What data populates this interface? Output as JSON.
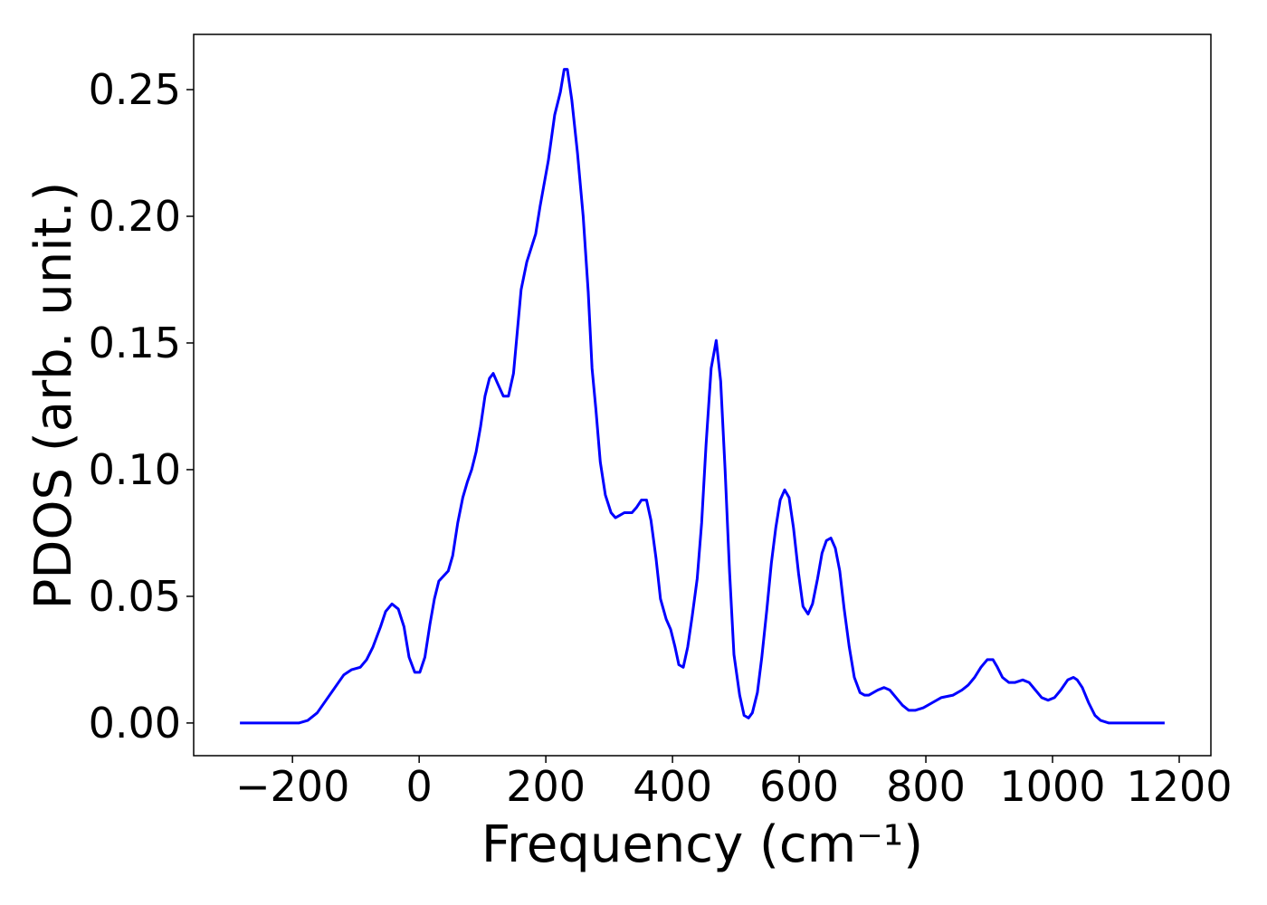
{
  "chart_data": {
    "type": "line",
    "xlabel": "Frequency (cm⁻¹)",
    "ylabel": "PDOS (arb. unit.)",
    "x": [
      -283,
      -190,
      -176,
      -161,
      -147,
      -133,
      -119,
      -107,
      -93,
      -83,
      -73,
      -61,
      -53,
      -43,
      -33,
      -24,
      -16,
      -7,
      1,
      9,
      17,
      24,
      31,
      46,
      53,
      61,
      69,
      76,
      83,
      90,
      97,
      104,
      111,
      117,
      124,
      133,
      141,
      149,
      161,
      170,
      184,
      191,
      204,
      214,
      223,
      229,
      234,
      241,
      250,
      259,
      267,
      273,
      279,
      286,
      294,
      303,
      310,
      317,
      324,
      336,
      343,
      351,
      359,
      366,
      374,
      381,
      390,
      397,
      404,
      410,
      417,
      424,
      431,
      439,
      446,
      453,
      461,
      469,
      476,
      483,
      490,
      497,
      506,
      513,
      520,
      526,
      534,
      541,
      549,
      556,
      563,
      570,
      577,
      584,
      591,
      599,
      606,
      614,
      621,
      629,
      636,
      643,
      650,
      657,
      664,
      671,
      679,
      687,
      696,
      703,
      710,
      724,
      734,
      743,
      753,
      763,
      773,
      783,
      796,
      810,
      824,
      843,
      857,
      867,
      877,
      887,
      897,
      906,
      913,
      921,
      931,
      941,
      953,
      963,
      973,
      983,
      993,
      1003,
      1013,
      1024,
      1033,
      1039,
      1047,
      1057,
      1067,
      1076,
      1089,
      1177
    ],
    "series": [
      {
        "color": "#0000ff",
        "values": [
          0,
          0,
          0.001,
          0.004,
          0.009,
          0.014,
          0.019,
          0.021,
          0.022,
          0.025,
          0.03,
          0.038,
          0.044,
          0.047,
          0.045,
          0.038,
          0.026,
          0.02,
          0.02,
          0.026,
          0.039,
          0.049,
          0.056,
          0.06,
          0.066,
          0.079,
          0.089,
          0.095,
          0.1,
          0.107,
          0.117,
          0.129,
          0.136,
          0.138,
          0.134,
          0.129,
          0.129,
          0.138,
          0.171,
          0.182,
          0.193,
          0.204,
          0.222,
          0.24,
          0.249,
          0.258,
          0.258,
          0.246,
          0.225,
          0.2,
          0.17,
          0.14,
          0.124,
          0.103,
          0.09,
          0.083,
          0.081,
          0.082,
          0.083,
          0.083,
          0.085,
          0.088,
          0.088,
          0.08,
          0.065,
          0.049,
          0.041,
          0.037,
          0.03,
          0.023,
          0.022,
          0.03,
          0.042,
          0.057,
          0.079,
          0.11,
          0.14,
          0.151,
          0.135,
          0.1,
          0.06,
          0.027,
          0.011,
          0.003,
          0.002,
          0.004,
          0.012,
          0.026,
          0.045,
          0.063,
          0.077,
          0.088,
          0.092,
          0.089,
          0.077,
          0.059,
          0.046,
          0.043,
          0.047,
          0.057,
          0.067,
          0.072,
          0.073,
          0.069,
          0.06,
          0.045,
          0.03,
          0.018,
          0.012,
          0.011,
          0.011,
          0.013,
          0.014,
          0.013,
          0.01,
          0.007,
          0.005,
          0.005,
          0.006,
          0.008,
          0.01,
          0.011,
          0.013,
          0.015,
          0.018,
          0.022,
          0.025,
          0.025,
          0.022,
          0.018,
          0.016,
          0.016,
          0.017,
          0.016,
          0.013,
          0.01,
          0.009,
          0.01,
          0.013,
          0.017,
          0.018,
          0.017,
          0.014,
          0.008,
          0.003,
          0.001,
          0,
          0
        ]
      }
    ],
    "xlim": [
      -356,
      1250
    ],
    "ylim": [
      -0.0129,
      0.2718
    ],
    "xticks": [
      {
        "value": -200,
        "label": "−200"
      },
      0,
      200,
      400,
      600,
      800,
      1000,
      1200
    ],
    "yticks": [
      {
        "value": 0,
        "label": "0.00"
      },
      {
        "value": 0.05,
        "label": "0.05"
      },
      {
        "value": 0.1,
        "label": "0.10"
      },
      {
        "value": 0.15,
        "label": "0.15"
      },
      {
        "value": 0.2,
        "label": "0.20"
      },
      {
        "value": 0.25,
        "label": "0.25"
      }
    ]
  }
}
